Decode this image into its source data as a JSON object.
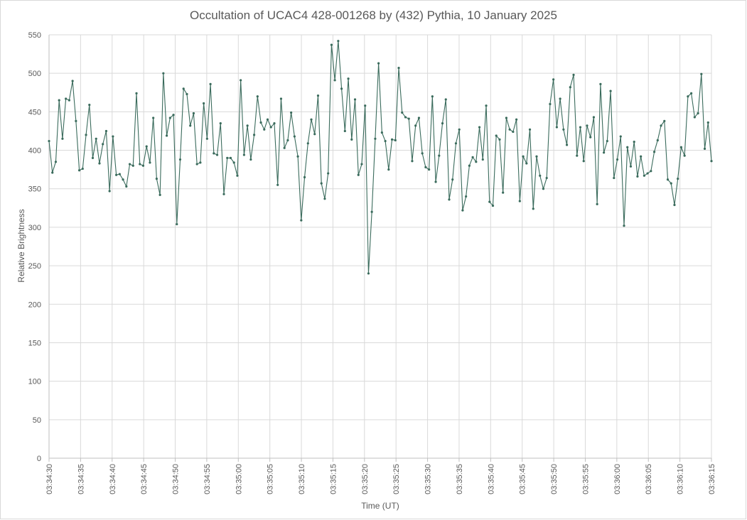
{
  "chart_data": {
    "type": "line",
    "title": "Occultation of UCAC4 428-001268 by (432) Pythia, 10 January 2025",
    "xlabel": "Time (UT)",
    "ylabel": "Relative Brightness",
    "ylim": [
      0,
      550
    ],
    "yticks": [
      0,
      50,
      100,
      150,
      200,
      250,
      300,
      350,
      400,
      450,
      500,
      550
    ],
    "xlim": [
      "03:34:30",
      "03:36:15"
    ],
    "xticks": [
      "03:34:30",
      "03:34:35",
      "03:34:40",
      "03:34:45",
      "03:34:50",
      "03:34:55",
      "03:35:00",
      "03:35:05",
      "03:35:10",
      "03:35:15",
      "03:35:20",
      "03:35:25",
      "03:35:30",
      "03:35:35",
      "03:35:40",
      "03:35:45",
      "03:35:50",
      "03:35:55",
      "03:36:00",
      "03:36:05",
      "03:36:10",
      "03:36:15"
    ],
    "grid": true,
    "line_color": "#3a6b5c",
    "series": [
      {
        "values": [
          412,
          371,
          385,
          465,
          415,
          467,
          465,
          490,
          438,
          374,
          376,
          420,
          459,
          390,
          415,
          383,
          408,
          425,
          347,
          418,
          368,
          369,
          362,
          353,
          382,
          380,
          474,
          382,
          380,
          405,
          384,
          442,
          363,
          342,
          500,
          419,
          442,
          446,
          304,
          388,
          480,
          473,
          432,
          448,
          382,
          384,
          461,
          415,
          486,
          396,
          394,
          435,
          343,
          390,
          390,
          384,
          367,
          491,
          394,
          432,
          388,
          420,
          470,
          436,
          427,
          440,
          430,
          435,
          355,
          467,
          403,
          413,
          449,
          418,
          392,
          309,
          365,
          409,
          440,
          421,
          471,
          357,
          337,
          370,
          537,
          491,
          542,
          480,
          425,
          493,
          414,
          466,
          368,
          382,
          458,
          240,
          320,
          415,
          513,
          423,
          412,
          375,
          414,
          413,
          507,
          449,
          443,
          441,
          386,
          432,
          442,
          396,
          378,
          375,
          470,
          359,
          393,
          435,
          466,
          336,
          362,
          409,
          427,
          322,
          340,
          380,
          391,
          385,
          430,
          388,
          458,
          333,
          328,
          419,
          414,
          345,
          442,
          427,
          424,
          440,
          334,
          392,
          383,
          427,
          324,
          392,
          367,
          350,
          364,
          460,
          492,
          430,
          467,
          427,
          407,
          482,
          498,
          393,
          430,
          386,
          432,
          417,
          443,
          330,
          486,
          397,
          412,
          477,
          364,
          388,
          418,
          302,
          404,
          379,
          411,
          366,
          392,
          367,
          370,
          373,
          398,
          413,
          432,
          438,
          362,
          357,
          329,
          363,
          404,
          393,
          470,
          474,
          443,
          448,
          499,
          402,
          436,
          386
        ]
      }
    ]
  }
}
